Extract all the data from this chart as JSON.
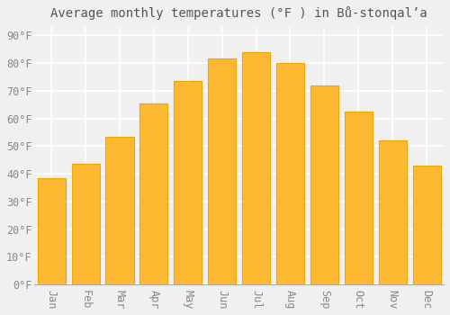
{
  "months": [
    "Jan",
    "Feb",
    "Mar",
    "Apr",
    "May",
    "Jun",
    "Jul",
    "Aug",
    "Sep",
    "Oct",
    "Nov",
    "Dec"
  ],
  "values": [
    38.5,
    43.5,
    53.5,
    65.5,
    73.5,
    81.5,
    84.0,
    80.0,
    72.0,
    62.5,
    52.0,
    43.0
  ],
  "bar_color_face": "#FDB931",
  "bar_color_edge": "#F0A500",
  "title": "Average monthly temperatures (°F ) in Bů-stonqalʼa",
  "ylim": [
    0,
    93
  ],
  "yticks": [
    0,
    10,
    20,
    30,
    40,
    50,
    60,
    70,
    80,
    90
  ],
  "ytick_labels": [
    "0°F",
    "10°F",
    "20°F",
    "30°F",
    "40°F",
    "50°F",
    "60°F",
    "70°F",
    "80°F",
    "90°F"
  ],
  "background_color": "#f0f0f0",
  "grid_color": "#ffffff",
  "title_fontsize": 10,
  "tick_fontsize": 8.5
}
